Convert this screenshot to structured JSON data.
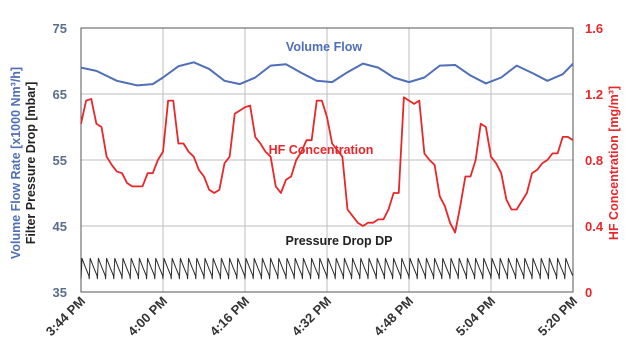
{
  "chart_data": {
    "type": "line",
    "x_ticks": [
      "3:44 PM",
      "4:00 PM",
      "4:16 PM",
      "4:32 PM",
      "4:48 PM",
      "5:04 PM",
      "5:20 PM"
    ],
    "x_range_minutes": [
      224,
      320
    ],
    "grid": true,
    "left_axis": {
      "label_line1": "Volume Flow Rate [x1000 Nm³/h]",
      "label_line2": "Filter Pressure Drop [mbar]",
      "ylim": [
        35,
        75
      ],
      "ticks": [
        "35",
        "45",
        "55",
        "65",
        "75"
      ]
    },
    "right_axis": {
      "label": "HF Concentration [mg/m³]",
      "ylim": [
        0,
        1.6
      ],
      "ticks": [
        "0",
        "0.4",
        "0.8",
        "1.2",
        "1.6"
      ]
    },
    "annotations": {
      "volume_flow": "Volume Flow",
      "hf": "HF Concentration",
      "pressure_drop": "Pressure Drop DP"
    },
    "colors": {
      "volume_flow": "#4f6fb8",
      "hf": "#e8272a",
      "pressure_drop": "#2b2b2b",
      "grid": "#bdbdbd",
      "left_axis_text": "#5a6e8c",
      "right_axis_text": "#e8272a"
    },
    "series": [
      {
        "name": "Volume Flow",
        "axis": "left",
        "x": [
          224,
          227,
          231,
          235,
          238,
          240,
          243,
          246,
          249,
          252,
          255,
          258,
          261,
          264,
          267,
          270,
          273,
          276,
          279,
          282,
          285,
          288,
          291,
          294,
          297,
          300,
          303,
          306,
          309,
          312,
          315,
          318,
          320
        ],
        "y": [
          69,
          68.5,
          67,
          66.3,
          66.5,
          67.5,
          69.2,
          69.8,
          68.8,
          67,
          66.5,
          67.5,
          69.3,
          69.5,
          68.2,
          67,
          66.8,
          68.3,
          69.6,
          69,
          67.5,
          66.8,
          67.5,
          69.3,
          69.4,
          67.8,
          66.6,
          67.5,
          69.3,
          68.2,
          67,
          68,
          69.6
        ]
      },
      {
        "name": "HF Concentration",
        "axis": "right",
        "x": [
          224,
          225,
          226,
          227,
          228,
          229,
          230,
          231,
          232,
          233,
          234,
          235,
          236,
          237,
          238,
          239,
          240,
          241,
          242,
          243,
          244,
          245,
          246,
          247,
          248,
          249,
          250,
          251,
          252,
          253,
          254,
          255,
          256,
          257,
          258,
          259,
          260,
          261,
          262,
          263,
          264,
          265,
          266,
          267,
          268,
          269,
          270,
          271,
          272,
          273,
          274,
          275,
          276,
          277,
          278,
          279,
          280,
          281,
          282,
          283,
          284,
          285,
          286,
          287,
          288,
          289,
          290,
          291,
          292,
          293,
          294,
          295,
          296,
          297,
          298,
          299,
          300,
          301,
          302,
          303,
          304,
          305,
          306,
          307,
          308,
          309,
          310,
          311,
          312,
          313,
          314,
          315,
          316,
          317,
          318,
          319,
          320
        ],
        "y": [
          1.02,
          1.16,
          1.17,
          1.02,
          1.0,
          0.82,
          0.77,
          0.73,
          0.72,
          0.66,
          0.64,
          0.64,
          0.64,
          0.72,
          0.72,
          0.8,
          0.85,
          1.16,
          1.16,
          0.9,
          0.9,
          0.85,
          0.82,
          0.74,
          0.7,
          0.62,
          0.6,
          0.62,
          0.78,
          0.82,
          1.08,
          1.1,
          1.12,
          1.13,
          0.94,
          0.9,
          0.85,
          0.82,
          0.64,
          0.6,
          0.68,
          0.7,
          0.8,
          0.85,
          0.92,
          0.92,
          1.16,
          1.16,
          1.06,
          0.9,
          0.86,
          0.82,
          0.5,
          0.46,
          0.42,
          0.4,
          0.42,
          0.42,
          0.44,
          0.44,
          0.5,
          0.6,
          0.6,
          1.18,
          1.16,
          1.14,
          1.16,
          0.84,
          0.8,
          0.77,
          0.58,
          0.52,
          0.42,
          0.36,
          0.52,
          0.7,
          0.7,
          0.8,
          1.02,
          1.0,
          0.82,
          0.78,
          0.72,
          0.56,
          0.5,
          0.5,
          0.55,
          0.6,
          0.72,
          0.74,
          0.78,
          0.8,
          0.84,
          0.84,
          0.94,
          0.94,
          0.92
        ]
      },
      {
        "name": "Pressure Drop DP",
        "axis": "left",
        "period_minutes": 1.6,
        "baseline": 37.8,
        "peak": 40.1,
        "trough": 37.0
      }
    ]
  }
}
